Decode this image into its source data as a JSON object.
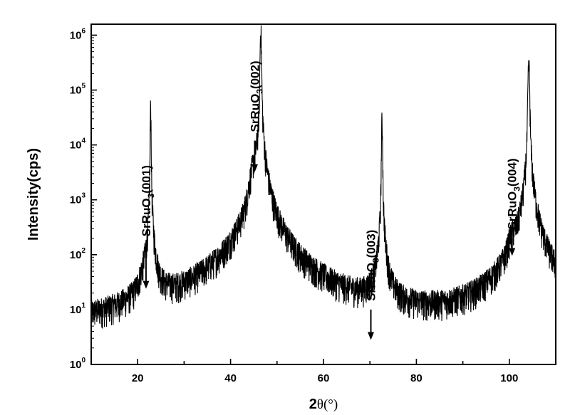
{
  "chart_data": {
    "type": "line",
    "xlabel_main": "2",
    "xlabel_theta": "θ(°)",
    "ylabel": "Intensity(cps)",
    "xlim": [
      10,
      110
    ],
    "ylim_log10": [
      0,
      6.2
    ],
    "yscale": "log",
    "x_ticks": [
      20,
      40,
      60,
      80,
      100
    ],
    "y_ticks": [
      {
        "base": "10",
        "exp": "0"
      },
      {
        "base": "10",
        "exp": "1"
      },
      {
        "base": "10",
        "exp": "2"
      },
      {
        "base": "10",
        "exp": "3"
      },
      {
        "base": "10",
        "exp": "4"
      },
      {
        "base": "10",
        "exp": "5"
      },
      {
        "base": "10",
        "exp": "6"
      }
    ],
    "background_cps": 2.5,
    "peaks": [
      {
        "x": 21.8,
        "height": 20,
        "width": 1.0
      },
      {
        "x": 22.8,
        "height": 45000,
        "width": 0.08
      },
      {
        "x": 45.2,
        "height": 2600,
        "width": 0.9
      },
      {
        "x": 46.5,
        "height": 1200000,
        "width": 0.12
      },
      {
        "x": 72.6,
        "height": 25000,
        "width": 0.1
      },
      {
        "x": 100.6,
        "height": 80,
        "width": 0.8
      },
      {
        "x": 104.2,
        "height": 260000,
        "width": 0.15
      }
    ],
    "annotations": [
      {
        "chem": "SrRuO",
        "sub": "3",
        "hkl": "(001)",
        "x": 21.8,
        "y_top": 150,
        "y_bottom": 24
      },
      {
        "chem": "SrRuO",
        "sub": "3",
        "hkl": "(002)",
        "x": 45.2,
        "y_top": 12000,
        "y_bottom": 3200
      },
      {
        "chem": "SrRuO",
        "sub": "3",
        "hkl": "(003)",
        "x": 70.2,
        "y_top": 10,
        "y_bottom": 2.8
      },
      {
        "chem": "SrRuO",
        "sub": "3",
        "hkl": "(004)",
        "x": 100.6,
        "y_top": 200,
        "y_bottom": 95
      }
    ]
  }
}
